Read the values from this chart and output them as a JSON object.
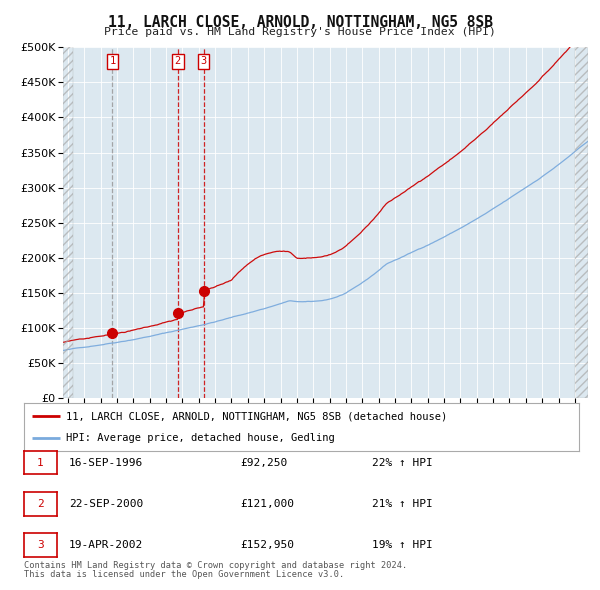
{
  "title": "11, LARCH CLOSE, ARNOLD, NOTTINGHAM, NG5 8SB",
  "subtitle": "Price paid vs. HM Land Registry's House Price Index (HPI)",
  "legend_line1": "11, LARCH CLOSE, ARNOLD, NOTTINGHAM, NG5 8SB (detached house)",
  "legend_line2": "HPI: Average price, detached house, Gedling",
  "footer1": "Contains HM Land Registry data © Crown copyright and database right 2024.",
  "footer2": "This data is licensed under the Open Government Licence v3.0.",
  "price_color": "#cc0000",
  "hpi_color": "#7aaadd",
  "bg_color": "#dce8f0",
  "transactions": [
    {
      "num": 1,
      "date": "16-SEP-1996",
      "price": 92250,
      "hpi_pct": "22% ↑ HPI",
      "year": 1996.72
    },
    {
      "num": 2,
      "date": "22-SEP-2000",
      "price": 121000,
      "hpi_pct": "21% ↑ HPI",
      "year": 2000.72
    },
    {
      "num": 3,
      "date": "19-APR-2002",
      "price": 152950,
      "hpi_pct": "19% ↑ HPI",
      "year": 2002.3
    }
  ],
  "ylim": [
    0,
    500000
  ],
  "yticks": [
    0,
    50000,
    100000,
    150000,
    200000,
    250000,
    300000,
    350000,
    400000,
    450000,
    500000
  ],
  "xlim_start": 1993.7,
  "xlim_end": 2025.8
}
